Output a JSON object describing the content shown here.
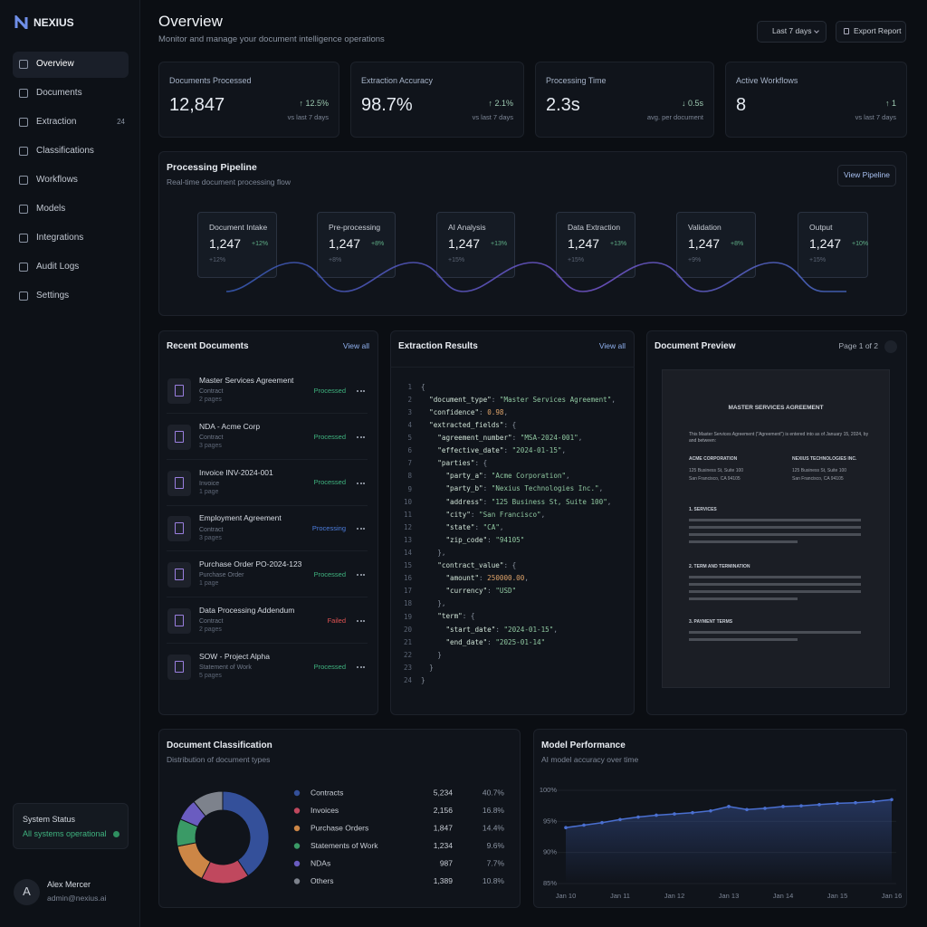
{
  "brand": "NEXIUS",
  "nav": [
    {
      "label": "Overview",
      "active": true
    },
    {
      "label": "Documents"
    },
    {
      "label": "Extraction",
      "badge": "24"
    },
    {
      "label": "Classifications"
    },
    {
      "label": "Workflows"
    },
    {
      "label": "Models"
    },
    {
      "label": "Integrations"
    },
    {
      "label": "Audit Logs"
    },
    {
      "label": "Settings"
    }
  ],
  "system_status": {
    "title": "System Status",
    "text": "All systems operational"
  },
  "user": {
    "initial": "A",
    "name": "Alex Mercer",
    "email": "admin@nexius.ai"
  },
  "header": {
    "title": "Overview",
    "subtitle": "Monitor and manage your document intelligence operations",
    "range": "Last 7 days",
    "export": "Export Report"
  },
  "kpis": [
    {
      "label": "Documents Processed",
      "value": "12,847",
      "delta": "↑ 12.5%",
      "note": "vs last 7 days"
    },
    {
      "label": "Extraction Accuracy",
      "value": "98.7%",
      "delta": "↑ 2.1%",
      "note": "vs last 7 days"
    },
    {
      "label": "Processing Time",
      "value": "2.3s",
      "delta": "↓ 0.5s",
      "note": "avg. per document"
    },
    {
      "label": "Active Workflows",
      "value": "8",
      "delta": "↑ 1",
      "note": "vs last 7 days"
    }
  ],
  "pipeline": {
    "title": "Processing Pipeline",
    "subtitle": "Real-time document processing flow",
    "button": "View Pipeline",
    "stages": [
      {
        "name": "Document Intake",
        "count": "1,247",
        "delta": "+12%",
        "sub": "+12%"
      },
      {
        "name": "Pre-processing",
        "count": "1,247",
        "delta": "+8%",
        "sub": "+8%"
      },
      {
        "name": "AI Analysis",
        "count": "1,247",
        "delta": "+13%",
        "sub": "+15%"
      },
      {
        "name": "Data Extraction",
        "count": "1,247",
        "delta": "+13%",
        "sub": "+15%"
      },
      {
        "name": "Validation",
        "count": "1,247",
        "delta": "+8%",
        "sub": "+9%"
      },
      {
        "name": "Output",
        "count": "1,247",
        "delta": "+10%",
        "sub": "+15%"
      }
    ]
  },
  "recent_documents": {
    "title": "Recent Documents",
    "link": "View all",
    "docs": [
      {
        "name": "Master Services Agreement",
        "type": "Contract",
        "pages": "2 pages",
        "status": "Processed",
        "color": "#3fb37f"
      },
      {
        "name": "NDA - Acme Corp",
        "type": "Contract",
        "pages": "3 pages",
        "status": "Processed",
        "color": "#3fb37f"
      },
      {
        "name": "Invoice INV-2024-001",
        "type": "Invoice",
        "pages": "1 page",
        "status": "Processed",
        "color": "#3fb37f"
      },
      {
        "name": "Employment Agreement",
        "type": "Contract",
        "pages": "3 pages",
        "status": "Processing",
        "color": "#4d7fe0"
      },
      {
        "name": "Purchase Order PO-2024-123",
        "type": "Purchase Order",
        "pages": "1 page",
        "status": "Processed",
        "color": "#3fb37f"
      },
      {
        "name": "Data Processing Addendum",
        "type": "Contract",
        "pages": "2 pages",
        "status": "Failed",
        "color": "#e05252"
      },
      {
        "name": "SOW - Project Alpha",
        "type": "Statement of Work",
        "pages": "5 pages",
        "status": "Processed",
        "color": "#3fb37f"
      }
    ]
  },
  "extraction_results": {
    "title": "Extraction Results",
    "link": "View all",
    "lines": [
      {
        "n": "1",
        "text": "{"
      },
      {
        "n": "2",
        "text": "  \"document_type\": \"Master Services Agreement\","
      },
      {
        "n": "3",
        "text": "  \"confidence\": 0.98,"
      },
      {
        "n": "4",
        "text": "  \"extracted_fields\": {"
      },
      {
        "n": "5",
        "text": "    \"agreement_number\": \"MSA-2024-001\","
      },
      {
        "n": "6",
        "text": "    \"effective_date\": \"2024-01-15\","
      },
      {
        "n": "7",
        "text": "    \"parties\": {"
      },
      {
        "n": "8",
        "text": "      \"party_a\": \"Acme Corporation\","
      },
      {
        "n": "9",
        "text": "      \"party_b\": \"Nexius Technologies Inc.\","
      },
      {
        "n": "10",
        "text": "      \"address\": \"125 Business St, Suite 100\","
      },
      {
        "n": "11",
        "text": "      \"city\": \"San Francisco\","
      },
      {
        "n": "12",
        "text": "      \"state\": \"CA\","
      },
      {
        "n": "13",
        "text": "      \"zip_code\": \"94105\""
      },
      {
        "n": "14",
        "text": "    },"
      },
      {
        "n": "15",
        "text": "    \"contract_value\": {"
      },
      {
        "n": "16",
        "text": "      \"amount\": 250000.00,"
      },
      {
        "n": "17",
        "text": "      \"currency\": \"USD\""
      },
      {
        "n": "18",
        "text": "    },"
      },
      {
        "n": "19",
        "text": "    \"term\": {"
      },
      {
        "n": "20",
        "text": "      \"start_date\": \"2024-01-15\","
      },
      {
        "n": "21",
        "text": "      \"end_date\": \"2025-01-14\""
      },
      {
        "n": "22",
        "text": "    }"
      },
      {
        "n": "23",
        "text": "  }"
      },
      {
        "n": "24",
        "text": "}"
      }
    ]
  },
  "document_preview": {
    "title": "Document Preview",
    "page": "Page 1 of 2",
    "doc": {
      "heading": "MASTER SERVICES AGREEMENT",
      "intro": "This Master Services Agreement (\"Agreement\") is entered into as of January 15, 2024, by and between:",
      "party_a": {
        "name": "ACME CORPORATION",
        "addr1": "125 Business St, Suite 100",
        "addr2": "San Francisco, CA 94105"
      },
      "party_b": {
        "name": "NEXIUS TECHNOLOGIES INC.",
        "addr1": "125 Business St, Suite 100",
        "addr2": "San Francisco, CA 94105"
      },
      "sections": [
        "1. SERVICES",
        "2. TERM AND TERMINATION",
        "3. PAYMENT TERMS"
      ]
    }
  },
  "chart_data": [
    {
      "type": "pie",
      "title": "Document Classification",
      "subtitle": "Distribution of document types",
      "categories": [
        "Contracts",
        "Invoices",
        "Purchase Orders",
        "Statements of Work",
        "NDAs",
        "Others"
      ],
      "values": [
        40.7,
        16.8,
        14.4,
        9.6,
        7.7,
        10.8
      ],
      "value_labels": [
        "40.7%",
        "16.8%",
        "14.4%",
        "9.6%",
        "7.7%",
        "10.8%"
      ],
      "counts": [
        "5,234",
        "2,156",
        "1,847",
        "1,234",
        "987",
        "1,389"
      ],
      "colors": [
        "#34509a",
        "#c0485e",
        "#cc8646",
        "#3a9a66",
        "#6a5cc0",
        "#7d828c"
      ]
    },
    {
      "type": "line",
      "title": "Model Performance",
      "subtitle": "AI model accuracy over time",
      "categories": [
        "Jan 10",
        null,
        null,
        "Jan 11",
        null,
        null,
        "Jan 12",
        null,
        null,
        "Jan 13",
        null,
        null,
        "Jan 14",
        null,
        null,
        "Jan 15",
        null,
        null,
        "Jan 16"
      ],
      "values": [
        94.0,
        94.4,
        94.8,
        95.3,
        95.7,
        96.0,
        96.2,
        96.4,
        96.7,
        97.4,
        96.9,
        97.1,
        97.4,
        97.5,
        97.7,
        97.9,
        98.0,
        98.2,
        98.5
      ],
      "color": "#4a6fd0",
      "ylim": [
        85,
        100
      ],
      "yticks": [
        {
          "value": 85,
          "label": "85%"
        },
        {
          "value": 90,
          "label": "90%"
        },
        {
          "value": 95,
          "label": "95%"
        },
        {
          "value": 100,
          "label": "100%"
        }
      ],
      "grid": true
    }
  ]
}
